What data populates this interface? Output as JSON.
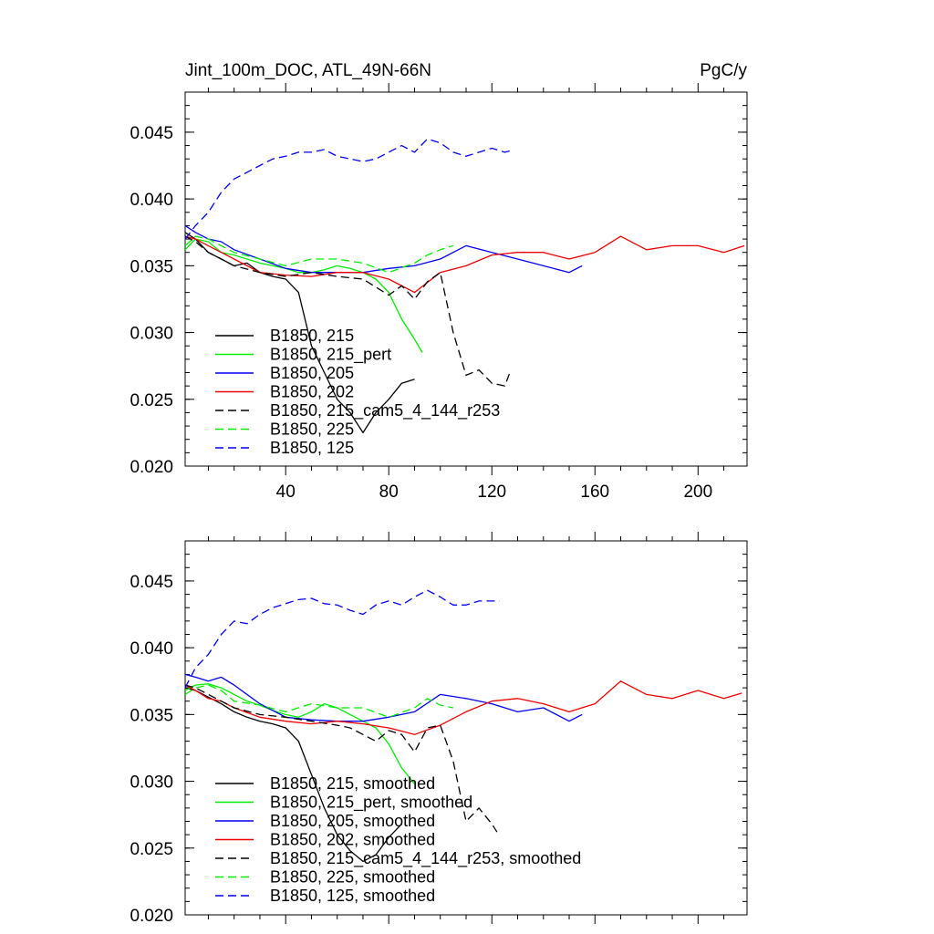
{
  "colors": {
    "black": "#000000",
    "green": "#00ee00",
    "blue": "#0000ee",
    "red": "#ee0000"
  },
  "chart_data": [
    {
      "type": "line",
      "title": "Jint_100m_DOC, ATL_49N-66N",
      "units": "PgC/y",
      "xlim": [
        1,
        219
      ],
      "ylim": [
        0.02,
        0.048
      ],
      "xticks": [
        40,
        80,
        120,
        160,
        200
      ],
      "xtick_labels": [
        "40",
        "80",
        "120",
        "160",
        "200"
      ],
      "yticks": [
        0.02,
        0.025,
        0.03,
        0.035,
        0.04,
        0.045
      ],
      "ytick_labels": [
        "0.020",
        "0.025",
        "0.030",
        "0.035",
        "0.040",
        "0.045"
      ],
      "legend_position": "bottom-left",
      "series": [
        {
          "name": "B1850, 215",
          "color": "black",
          "dash": "solid",
          "x": [
            1,
            5,
            10,
            15,
            20,
            25,
            30,
            35,
            40,
            45,
            50,
            55,
            60,
            65,
            70,
            75,
            80,
            85,
            90
          ],
          "y": [
            0.0375,
            0.037,
            0.036,
            0.0355,
            0.035,
            0.0352,
            0.0345,
            0.0342,
            0.034,
            0.033,
            0.029,
            0.027,
            0.025,
            0.024,
            0.0225,
            0.024,
            0.025,
            0.0262,
            0.0265
          ]
        },
        {
          "name": "B1850, 215_pert",
          "color": "green",
          "dash": "solid",
          "x": [
            1,
            5,
            10,
            15,
            20,
            25,
            30,
            35,
            40,
            45,
            50,
            55,
            60,
            65,
            70,
            75,
            80,
            85,
            90,
            93
          ],
          "y": [
            0.0362,
            0.037,
            0.0368,
            0.036,
            0.0358,
            0.0355,
            0.0352,
            0.035,
            0.0348,
            0.0345,
            0.0345,
            0.0347,
            0.035,
            0.0348,
            0.0345,
            0.034,
            0.033,
            0.031,
            0.0295,
            0.0285
          ]
        },
        {
          "name": "B1850, 205",
          "color": "blue",
          "dash": "solid",
          "x": [
            1,
            5,
            10,
            15,
            20,
            30,
            40,
            50,
            60,
            70,
            80,
            90,
            100,
            110,
            120,
            130,
            140,
            150,
            155
          ],
          "y": [
            0.038,
            0.0375,
            0.037,
            0.0368,
            0.0362,
            0.0355,
            0.0348,
            0.0345,
            0.0345,
            0.0345,
            0.0348,
            0.035,
            0.0355,
            0.0365,
            0.036,
            0.0355,
            0.035,
            0.0345,
            0.035
          ]
        },
        {
          "name": "B1850, 202",
          "color": "red",
          "dash": "solid",
          "x": [
            1,
            5,
            10,
            15,
            20,
            30,
            40,
            50,
            60,
            70,
            80,
            90,
            100,
            110,
            120,
            130,
            140,
            150,
            160,
            170,
            180,
            190,
            200,
            210,
            218
          ],
          "y": [
            0.0372,
            0.037,
            0.0365,
            0.036,
            0.0355,
            0.0345,
            0.0343,
            0.0342,
            0.0345,
            0.0345,
            0.034,
            0.033,
            0.0345,
            0.035,
            0.0358,
            0.036,
            0.036,
            0.0355,
            0.036,
            0.0372,
            0.0362,
            0.0365,
            0.0365,
            0.036,
            0.0365
          ]
        },
        {
          "name": "B1850, 215_cam5_4_144_r253",
          "color": "black",
          "dash": "dashed",
          "x": [
            1,
            5,
            10,
            15,
            20,
            30,
            40,
            50,
            60,
            70,
            80,
            85,
            90,
            95,
            100,
            105,
            110,
            115,
            120,
            125,
            127
          ],
          "y": [
            0.0372,
            0.0368,
            0.036,
            0.0355,
            0.035,
            0.0345,
            0.0342,
            0.0345,
            0.0342,
            0.034,
            0.0328,
            0.0335,
            0.0325,
            0.0338,
            0.0345,
            0.03,
            0.0268,
            0.0272,
            0.0262,
            0.026,
            0.027
          ]
        },
        {
          "name": "B1850, 225",
          "color": "green",
          "dash": "dashed",
          "x": [
            1,
            5,
            10,
            15,
            20,
            30,
            40,
            50,
            60,
            70,
            80,
            90,
            95,
            100,
            105
          ],
          "y": [
            0.0365,
            0.0372,
            0.037,
            0.0365,
            0.036,
            0.0355,
            0.035,
            0.0355,
            0.0355,
            0.0352,
            0.0345,
            0.0352,
            0.0358,
            0.0362,
            0.0365
          ]
        },
        {
          "name": "B1850, 125",
          "color": "blue",
          "dash": "dashed",
          "x": [
            1,
            5,
            10,
            15,
            20,
            25,
            30,
            35,
            40,
            45,
            50,
            55,
            60,
            65,
            70,
            75,
            80,
            85,
            90,
            95,
            100,
            105,
            110,
            115,
            120,
            125,
            127
          ],
          "y": [
            0.037,
            0.038,
            0.039,
            0.0405,
            0.0415,
            0.042,
            0.0425,
            0.043,
            0.0432,
            0.0435,
            0.0435,
            0.0437,
            0.0432,
            0.043,
            0.0428,
            0.043,
            0.0435,
            0.044,
            0.0435,
            0.0445,
            0.0442,
            0.0435,
            0.0432,
            0.0435,
            0.0438,
            0.0435,
            0.0436
          ]
        }
      ]
    },
    {
      "type": "line",
      "title": "",
      "units": "",
      "xlim": [
        1,
        219
      ],
      "ylim": [
        0.02,
        0.048
      ],
      "xticks": [
        40,
        80,
        120,
        160,
        200
      ],
      "xtick_labels": [],
      "yticks": [
        0.02,
        0.025,
        0.03,
        0.035,
        0.04,
        0.045
      ],
      "ytick_labels": [
        "0.020",
        "0.025",
        "0.030",
        "0.035",
        "0.040",
        "0.045"
      ],
      "legend_position": "bottom-left",
      "series": [
        {
          "name": "B1850, 215, smoothed",
          "color": "black",
          "dash": "solid",
          "x": [
            1,
            5,
            10,
            15,
            20,
            25,
            30,
            35,
            40,
            45,
            50,
            55,
            60,
            65,
            70,
            75,
            80,
            85
          ],
          "y": [
            0.037,
            0.0368,
            0.0363,
            0.0358,
            0.0352,
            0.0348,
            0.0345,
            0.0343,
            0.034,
            0.033,
            0.0305,
            0.028,
            0.026,
            0.0248,
            0.024,
            0.0245,
            0.0258,
            0.0268
          ]
        },
        {
          "name": "B1850, 215_pert, smoothed",
          "color": "green",
          "dash": "solid",
          "x": [
            1,
            5,
            10,
            15,
            20,
            25,
            30,
            35,
            40,
            45,
            50,
            55,
            60,
            65,
            70,
            75,
            80,
            85,
            90
          ],
          "y": [
            0.0368,
            0.0372,
            0.0373,
            0.037,
            0.0365,
            0.036,
            0.0357,
            0.0353,
            0.035,
            0.0348,
            0.0352,
            0.0358,
            0.0355,
            0.035,
            0.0345,
            0.034,
            0.0328,
            0.031,
            0.0298
          ]
        },
        {
          "name": "B1850, 205, smoothed",
          "color": "blue",
          "dash": "solid",
          "x": [
            1,
            5,
            10,
            15,
            20,
            30,
            40,
            50,
            60,
            70,
            80,
            90,
            100,
            110,
            120,
            130,
            140,
            150,
            155
          ],
          "y": [
            0.038,
            0.0378,
            0.0375,
            0.0378,
            0.0372,
            0.0358,
            0.0348,
            0.0346,
            0.0345,
            0.0345,
            0.0348,
            0.0352,
            0.0365,
            0.0362,
            0.0358,
            0.0352,
            0.0355,
            0.0345,
            0.035
          ]
        },
        {
          "name": "B1850, 202, smoothed",
          "color": "red",
          "dash": "solid",
          "x": [
            1,
            5,
            10,
            15,
            20,
            30,
            40,
            50,
            60,
            70,
            80,
            90,
            100,
            110,
            120,
            130,
            140,
            150,
            160,
            170,
            180,
            190,
            200,
            210,
            217
          ],
          "y": [
            0.0372,
            0.0368,
            0.0362,
            0.036,
            0.0355,
            0.0348,
            0.0345,
            0.0343,
            0.0345,
            0.0343,
            0.034,
            0.0335,
            0.0342,
            0.0352,
            0.036,
            0.0362,
            0.0358,
            0.0352,
            0.0358,
            0.0375,
            0.0365,
            0.0362,
            0.0368,
            0.0362,
            0.0366
          ]
        },
        {
          "name": "B1850, 215_cam5_4_144_r253, smoothed",
          "color": "black",
          "dash": "dashed",
          "x": [
            1,
            5,
            10,
            15,
            20,
            30,
            40,
            50,
            60,
            65,
            70,
            75,
            80,
            85,
            90,
            95,
            100,
            105,
            110,
            115,
            120,
            122
          ],
          "y": [
            0.0372,
            0.037,
            0.0365,
            0.036,
            0.0355,
            0.035,
            0.0348,
            0.0345,
            0.0342,
            0.034,
            0.0335,
            0.033,
            0.0338,
            0.0335,
            0.0322,
            0.034,
            0.0342,
            0.0315,
            0.027,
            0.028,
            0.0268,
            0.0262
          ]
        },
        {
          "name": "B1850, 225, smoothed",
          "color": "green",
          "dash": "dashed",
          "x": [
            1,
            5,
            10,
            15,
            20,
            30,
            40,
            50,
            60,
            70,
            80,
            90,
            95,
            100,
            105
          ],
          "y": [
            0.0365,
            0.037,
            0.0372,
            0.0368,
            0.036,
            0.0357,
            0.0352,
            0.0358,
            0.0355,
            0.0355,
            0.0348,
            0.0355,
            0.0362,
            0.0357,
            0.0355
          ]
        },
        {
          "name": "B1850, 125, smoothed",
          "color": "blue",
          "dash": "dashed",
          "x": [
            1,
            5,
            10,
            15,
            20,
            25,
            30,
            35,
            40,
            45,
            50,
            55,
            60,
            65,
            70,
            75,
            80,
            85,
            90,
            95,
            100,
            105,
            110,
            115,
            120,
            123
          ],
          "y": [
            0.037,
            0.0385,
            0.0395,
            0.041,
            0.042,
            0.0418,
            0.0425,
            0.043,
            0.0433,
            0.0436,
            0.0437,
            0.0433,
            0.0432,
            0.0428,
            0.0425,
            0.0432,
            0.0435,
            0.0432,
            0.0438,
            0.0443,
            0.0438,
            0.0432,
            0.0432,
            0.0435,
            0.0435,
            0.0435
          ]
        }
      ]
    }
  ]
}
